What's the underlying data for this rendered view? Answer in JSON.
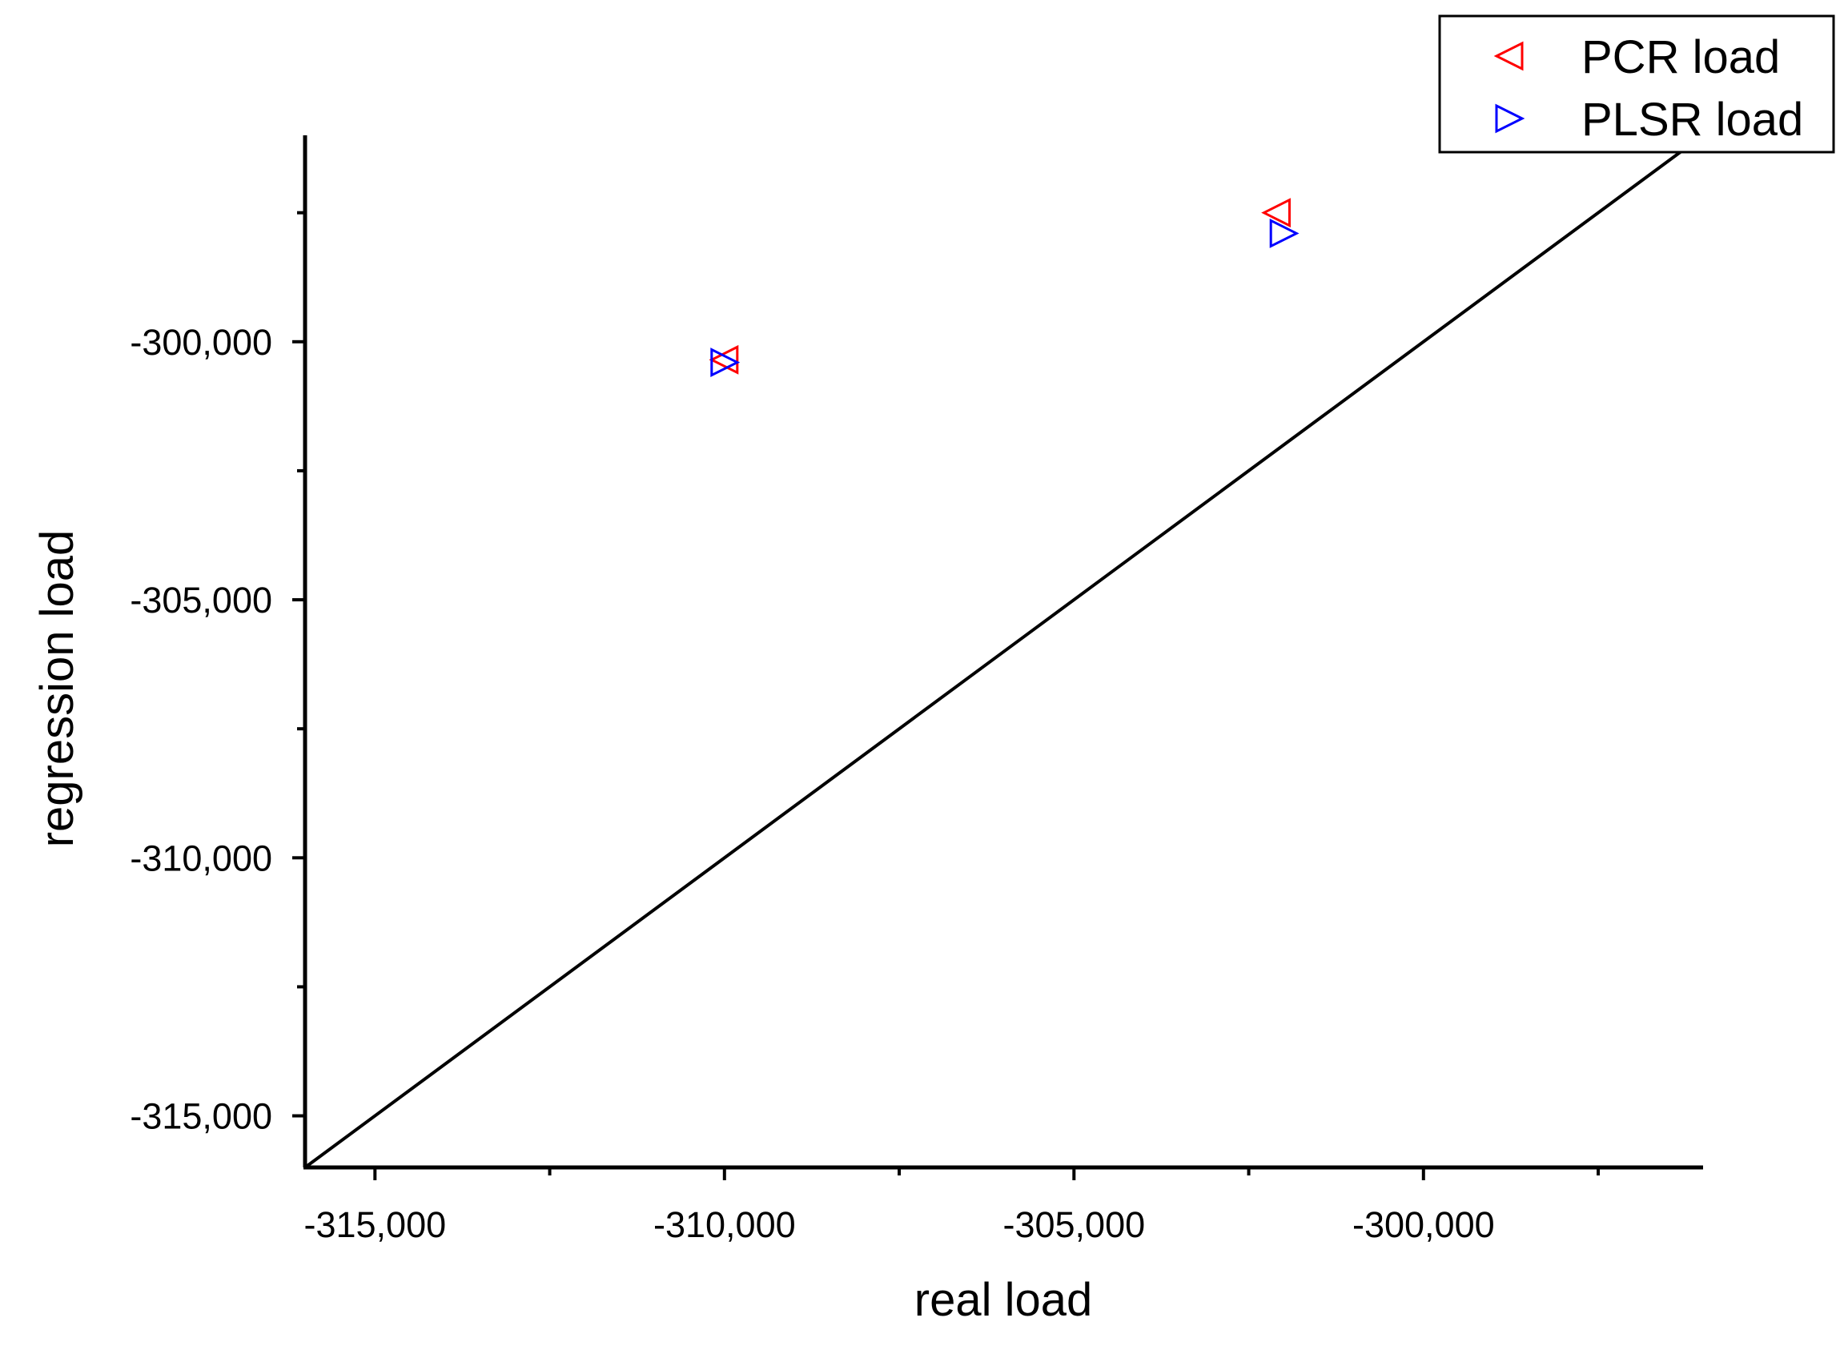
{
  "chart_data": {
    "type": "scatter",
    "title": "",
    "xlabel": "real load",
    "ylabel": "regression load",
    "xlim": [
      -316000,
      -296000
    ],
    "ylim": [
      -316000,
      -296000
    ],
    "x_ticks": [
      -315000,
      -310000,
      -305000,
      -300000
    ],
    "x_tick_labels": [
      "-315,000",
      "-310,000",
      "-305,000",
      "-300,000"
    ],
    "y_ticks": [
      -300000,
      -305000,
      -310000,
      -315000
    ],
    "y_tick_labels": [
      "-300,000",
      "-305,000",
      "-310,000",
      "-315,000"
    ],
    "grid": false,
    "legend_position": "top-right",
    "reference_line": {
      "kind": "y = x",
      "color": "#000000"
    },
    "series": [
      {
        "name": "PCR load",
        "marker": "triangle-left",
        "color": "#ff0000",
        "points": [
          {
            "x": -310000,
            "y": -300350
          },
          {
            "x": -302100,
            "y": -297500
          }
        ]
      },
      {
        "name": "PLSR load",
        "marker": "triangle-right",
        "color": "#0000ff",
        "points": [
          {
            "x": -310000,
            "y": -300400
          },
          {
            "x": -302000,
            "y": -297900
          }
        ]
      }
    ]
  }
}
